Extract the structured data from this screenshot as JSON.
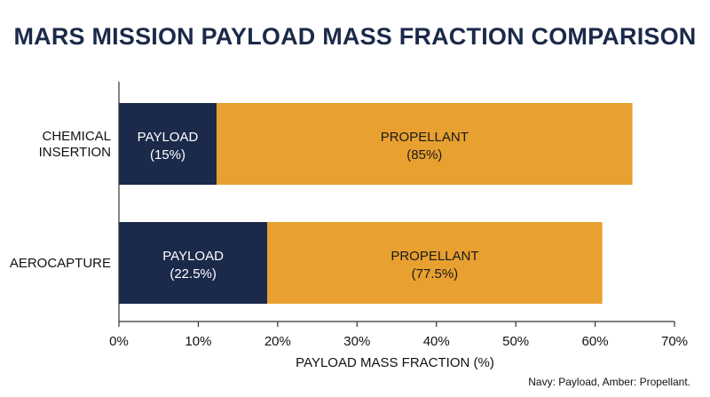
{
  "chart_data": {
    "type": "bar",
    "orientation": "horizontal",
    "stacked": true,
    "title": "MARS MISSION PAYLOAD MASS FRACTION COMPARISON",
    "xlabel": "PAYLOAD MASS FRACTION (%)",
    "ylabel": "",
    "xlim": [
      0,
      70
    ],
    "xticks": [
      "0%",
      "10%",
      "20%",
      "30%",
      "40%",
      "50%",
      "60%",
      "70%"
    ],
    "xtick_values": [
      0,
      10,
      20,
      30,
      40,
      50,
      60,
      70
    ],
    "categories": [
      [
        "CHEMICAL",
        "INSERTION"
      ],
      [
        "AEROCAPTURE"
      ]
    ],
    "series": [
      {
        "name": "PAYLOAD",
        "color": "#1b2a4a",
        "text_color": "#ffffff",
        "values": [
          12.3,
          18.7
        ],
        "labels": [
          "(15%)",
          "(22.5%)"
        ]
      },
      {
        "name": "PROPELLANT",
        "color": "#e8a030",
        "text_color": "#1a1a1a",
        "values": [
          52.4,
          42.2
        ],
        "labels": [
          "(85%)",
          "(77.5%)"
        ]
      }
    ],
    "grid": false,
    "note": "Navy: Payload, Amber: Propellant."
  }
}
